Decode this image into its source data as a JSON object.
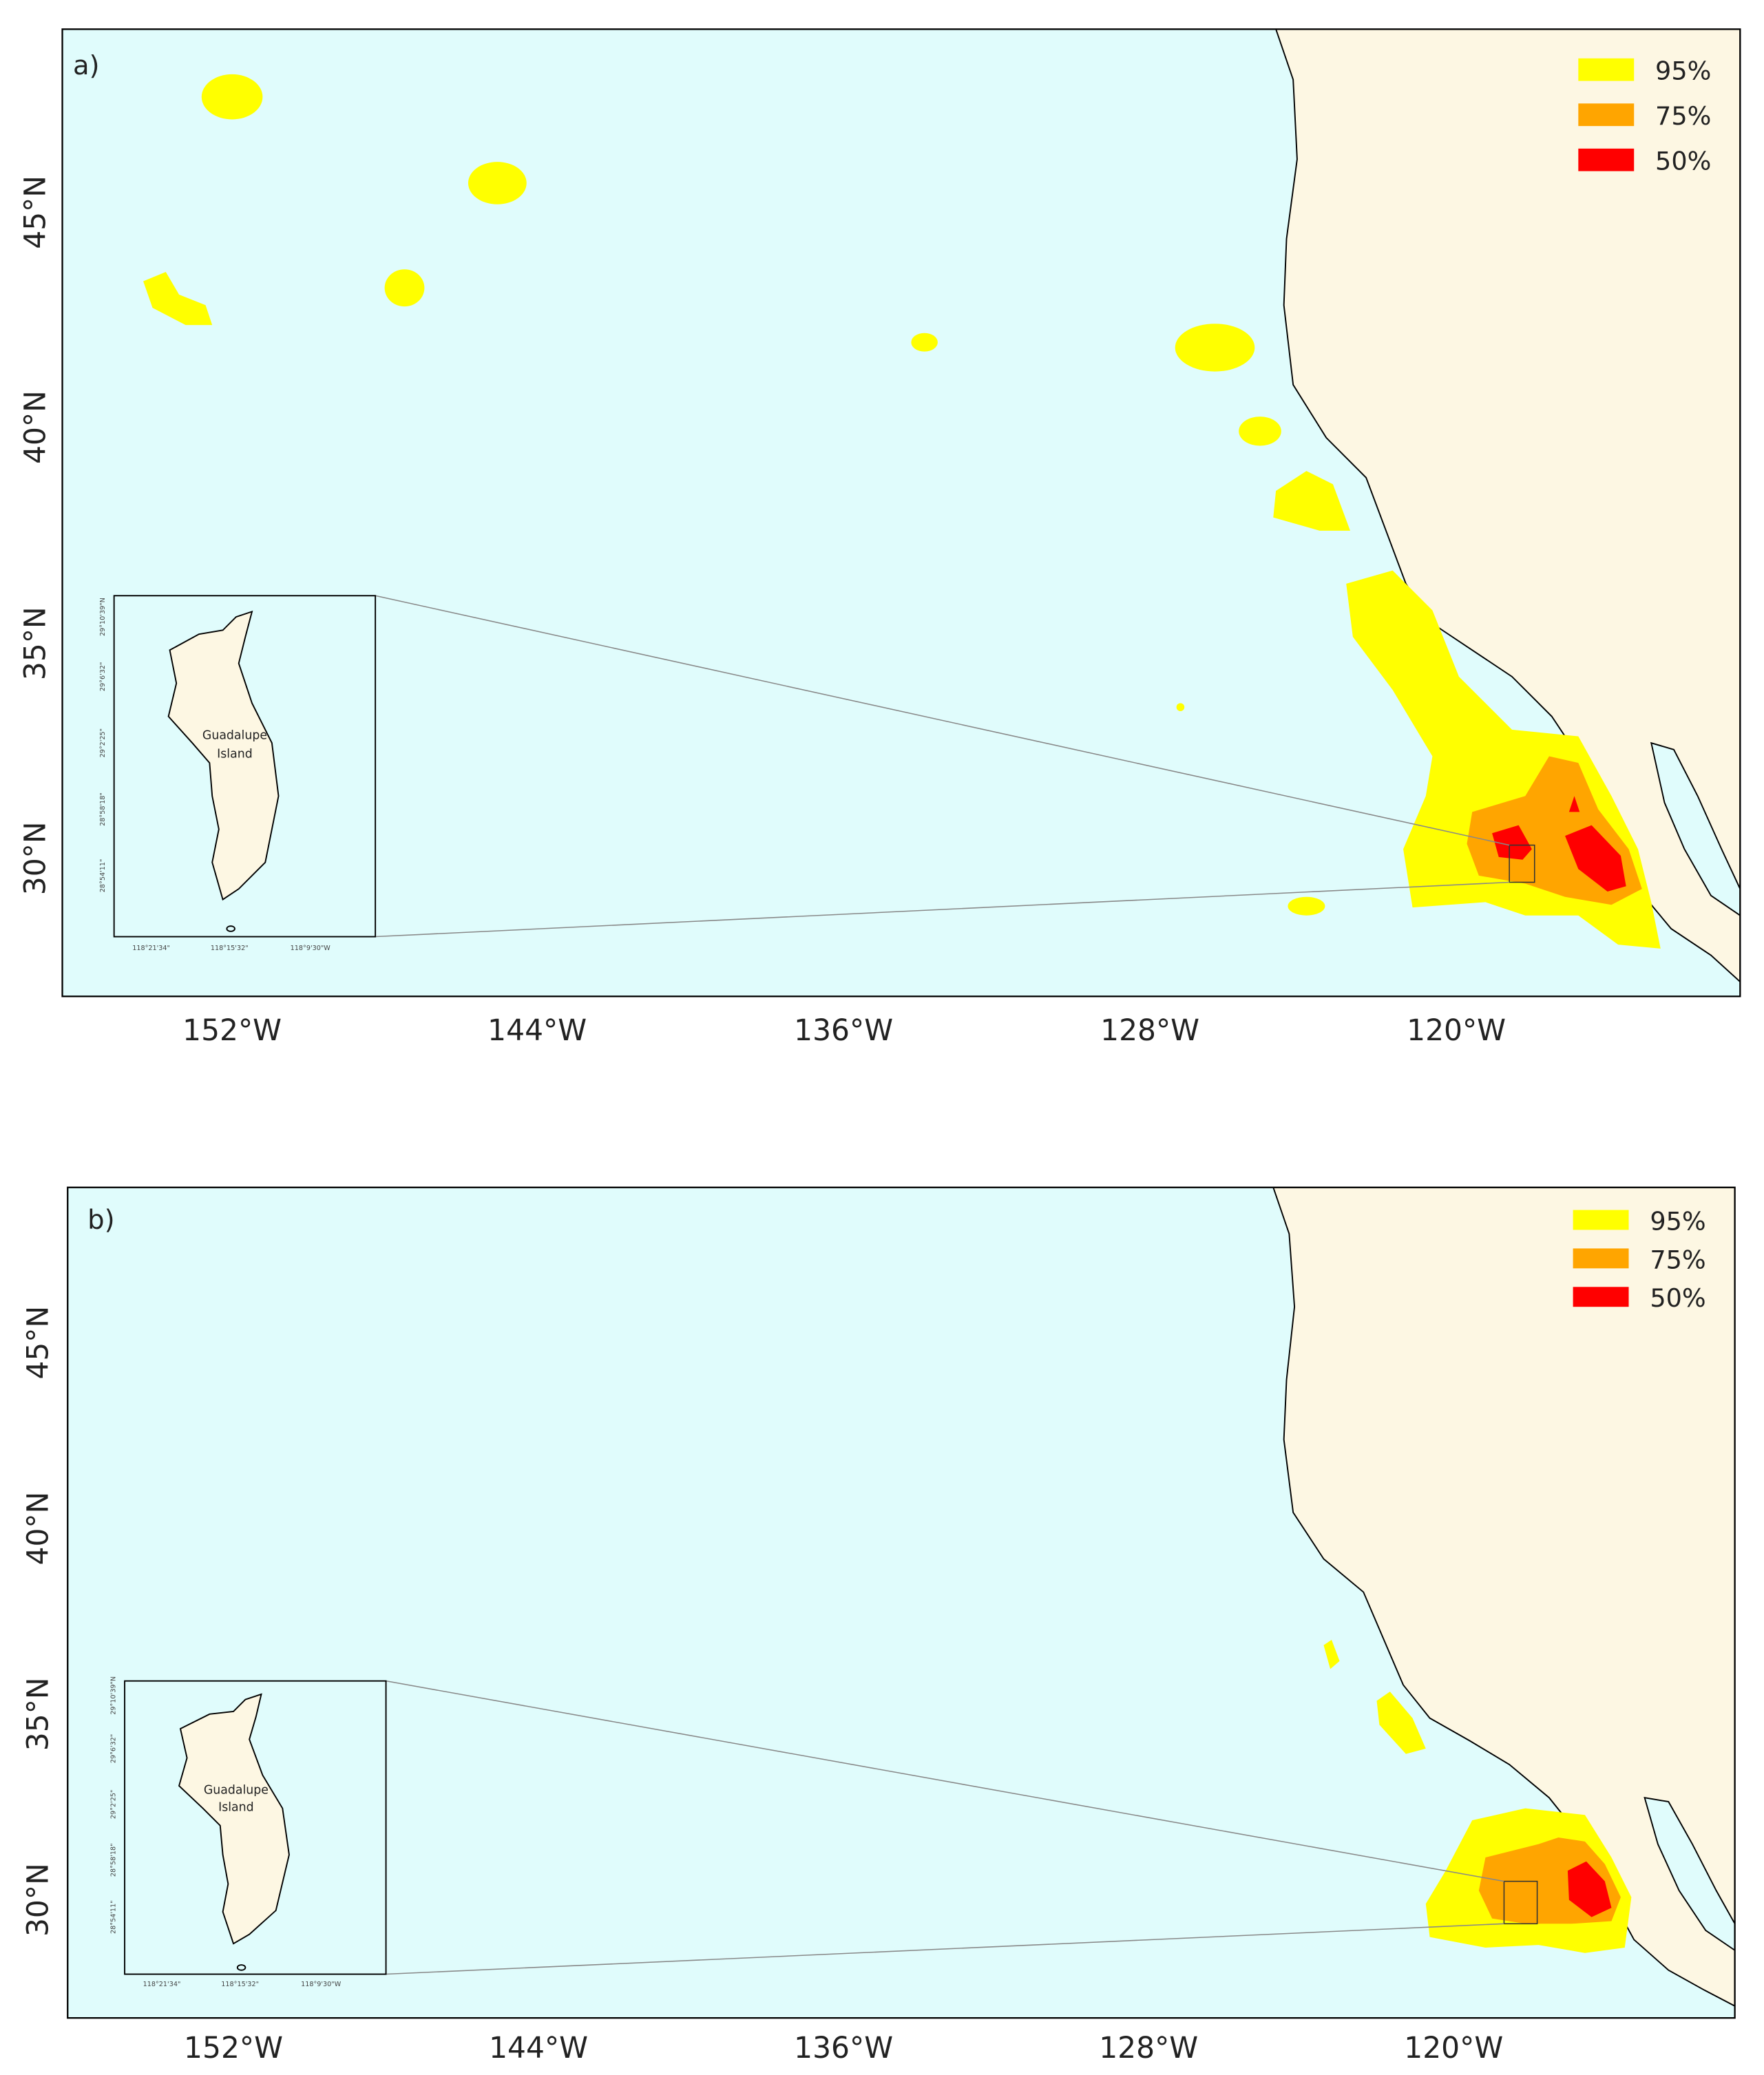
{
  "panels": [
    {
      "label": "a)",
      "legend": [
        "95%",
        "75%",
        "50%"
      ],
      "x_ticks": [
        "152°W",
        "144°W",
        "136°W",
        "128°W",
        "120°W"
      ],
      "y_ticks": [
        "45°N",
        "40°N",
        "35°N",
        "30°N"
      ],
      "inset": {
        "label": [
          "Guadalupe",
          "Island"
        ],
        "x_ticks": [
          "118°21'34\"",
          "118°15'32\"",
          "118°9'30\"W"
        ],
        "y_ticks": [
          "28°54'11\"",
          "28°58'18\"",
          "29°2'25\"",
          "29°6'32\"",
          "29°10'39\"N"
        ]
      }
    },
    {
      "label": "b)",
      "legend": [
        "95%",
        "75%",
        "50%"
      ],
      "x_ticks": [
        "152°W",
        "144°W",
        "136°W",
        "128°W",
        "120°W"
      ],
      "y_ticks": [
        "45°N",
        "40°N",
        "35°N",
        "30°N"
      ],
      "inset": {
        "label": [
          "Guadalupe",
          "Island"
        ],
        "x_ticks": [
          "118°21'34\"",
          "118°15'32\"",
          "118°9'30\"W"
        ],
        "y_ticks": [
          "28°54'11\"",
          "28°58'18\"",
          "29°2'25\"",
          "29°6'32\"",
          "29°10'39\"N"
        ]
      }
    }
  ]
}
